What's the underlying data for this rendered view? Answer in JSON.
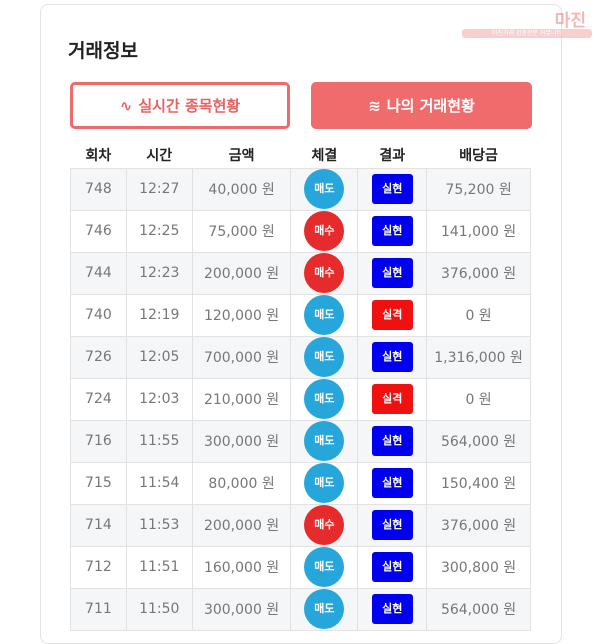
{
  "watermark": {
    "logo": "마진",
    "tagline": "마진거래 검증전문 커뮤니티"
  },
  "title": "거래정보",
  "buttons": {
    "realtime": "실시간 종목현황",
    "my_trades": "나의 거래현황"
  },
  "colors": {
    "sell": "#27a6dc",
    "buy": "#e52b2b",
    "win": "#0000ee",
    "lose": "#f01010",
    "accent": "#f06b6b"
  },
  "headers": [
    "회차",
    "시간",
    "금액",
    "체결",
    "결과",
    "배당금"
  ],
  "rows": [
    {
      "round": "748",
      "time": "12:27",
      "amount": "40,000 원",
      "side": "매도",
      "result": "실현",
      "payout": "75,200 원"
    },
    {
      "round": "746",
      "time": "12:25",
      "amount": "75,000 원",
      "side": "매수",
      "result": "실현",
      "payout": "141,000 원"
    },
    {
      "round": "744",
      "time": "12:23",
      "amount": "200,000 원",
      "side": "매수",
      "result": "실현",
      "payout": "376,000 원"
    },
    {
      "round": "740",
      "time": "12:19",
      "amount": "120,000 원",
      "side": "매도",
      "result": "실격",
      "payout": "0 원"
    },
    {
      "round": "726",
      "time": "12:05",
      "amount": "700,000 원",
      "side": "매도",
      "result": "실현",
      "payout": "1,316,000 원"
    },
    {
      "round": "724",
      "time": "12:03",
      "amount": "210,000 원",
      "side": "매도",
      "result": "실격",
      "payout": "0 원"
    },
    {
      "round": "716",
      "time": "11:55",
      "amount": "300,000 원",
      "side": "매도",
      "result": "실현",
      "payout": "564,000 원"
    },
    {
      "round": "715",
      "time": "11:54",
      "amount": "80,000 원",
      "side": "매도",
      "result": "실현",
      "payout": "150,400 원"
    },
    {
      "round": "714",
      "time": "11:53",
      "amount": "200,000 원",
      "side": "매수",
      "result": "실현",
      "payout": "376,000 원"
    },
    {
      "round": "712",
      "time": "11:51",
      "amount": "160,000 원",
      "side": "매도",
      "result": "실현",
      "payout": "300,800 원"
    },
    {
      "round": "711",
      "time": "11:50",
      "amount": "300,000 원",
      "side": "매도",
      "result": "실현",
      "payout": "564,000 원"
    }
  ]
}
